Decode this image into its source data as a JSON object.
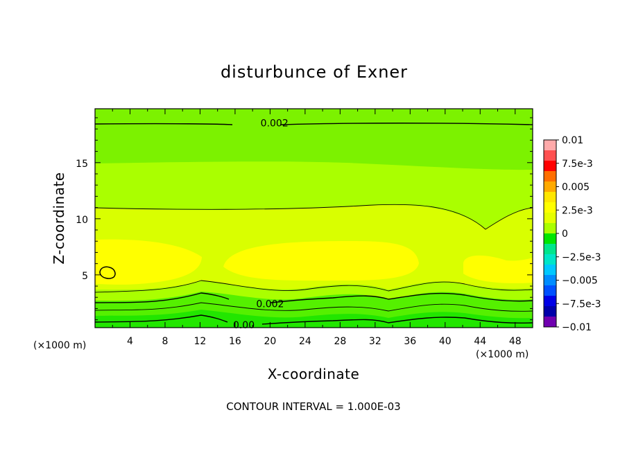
{
  "chart_data": {
    "type": "heatmap",
    "title": "disturbunce of Exner",
    "xlabel": "X-coordinate",
    "ylabel": "Z-coordinate",
    "x_unit_note": "(×1000 m)",
    "y_unit_note": "(×1000 m)",
    "x_ticks": [
      4,
      8,
      12,
      16,
      20,
      24,
      28,
      32,
      36,
      40,
      44,
      48
    ],
    "y_ticks": [
      5,
      10,
      15
    ],
    "xlim": [
      0,
      50
    ],
    "ylim": [
      0.3,
      19.8
    ],
    "contour_interval_text": "CONTOUR INTERVAL = 1.000E-03",
    "colorbar": {
      "labels": [
        "0.01",
        "7.5e-3",
        "0.005",
        "2.5e-3",
        "0",
        "−2.5e-3",
        "−0.005",
        "−7.5e-3",
        "−0.01"
      ],
      "colors": [
        "#ffaaaa",
        "#ff5050",
        "#ff0000",
        "#ff6e00",
        "#ffaa00",
        "#ffe600",
        "#ffff00",
        "#e6ff00",
        "#aaff00",
        "#00e600",
        "#00e68c",
        "#00e6c8",
        "#00c8ff",
        "#008cff",
        "#0050ff",
        "#0000e6",
        "#0000aa",
        "#7000b0"
      ]
    },
    "contour_labels": [
      {
        "text": "0.002",
        "x": 20.5,
        "y": 18.6
      },
      {
        "text": "0.002",
        "x": 20.0,
        "y": 2.5
      },
      {
        "text": "0.00",
        "x": 17.0,
        "y": 0.6
      }
    ]
  }
}
